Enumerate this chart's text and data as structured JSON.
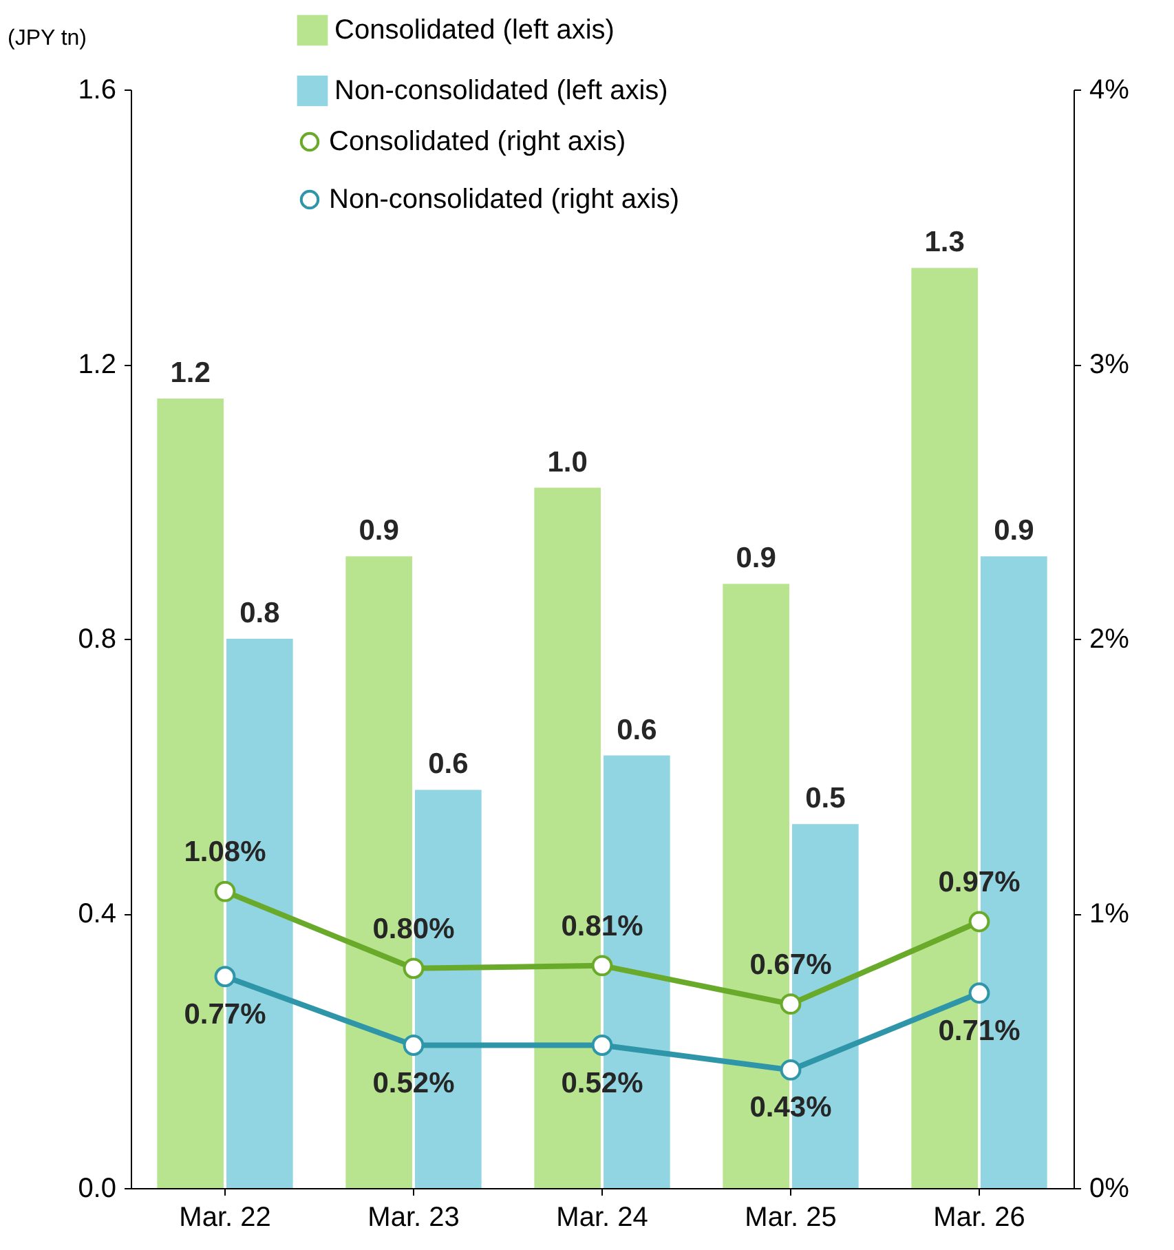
{
  "chart_data": {
    "type": "bar",
    "ylabel": "(JPY tn)",
    "categories": [
      "Mar. 22",
      "Mar. 23",
      "Mar. 24",
      "Mar. 25",
      "Mar. 26"
    ],
    "series": [
      {
        "name": "Consolidated (left axis)",
        "color": "#b9e48f",
        "values": [
          1.15,
          0.92,
          1.02,
          0.88,
          1.34
        ],
        "value_labels": [
          "1.2",
          "0.9",
          "1.0",
          "0.9",
          "1.3"
        ]
      },
      {
        "name": "Non-consolidated (left axis)",
        "color": "#92d5e2",
        "values": [
          0.8,
          0.58,
          0.63,
          0.53,
          0.92
        ],
        "value_labels": [
          "0.8",
          "0.6",
          "0.6",
          "0.5",
          "0.9"
        ]
      },
      {
        "name": "Consolidated (right axis)",
        "type": "line",
        "axis": "y2",
        "color": "#6aaa2a",
        "values": [
          1.08,
          0.8,
          0.81,
          0.67,
          0.97
        ],
        "value_labels": [
          "1.08%",
          "0.80%",
          "0.81%",
          "0.67%",
          "0.97%"
        ]
      },
      {
        "name": "Non-consolidated (right axis)",
        "type": "line",
        "axis": "y2",
        "color": "#2e96a8",
        "values": [
          0.77,
          0.52,
          0.52,
          0.43,
          0.71
        ],
        "value_labels": [
          "0.77%",
          "0.52%",
          "0.52%",
          "0.43%",
          "0.71%"
        ]
      }
    ],
    "ylim": [
      0,
      1.6
    ],
    "yticks": [
      {
        "value": 0,
        "label": "0.0"
      },
      {
        "value": 0.4,
        "label": "0.4"
      },
      {
        "value": 0.8,
        "label": "0.8"
      },
      {
        "value": 1.2,
        "label": "1.2"
      },
      {
        "value": 1.6,
        "label": "1.6"
      }
    ],
    "y2lim": [
      0,
      4
    ],
    "y2ticks": [
      {
        "value": 0,
        "label": "0%"
      },
      {
        "value": 1,
        "label": "1%"
      },
      {
        "value": 2,
        "label": "2%"
      },
      {
        "value": 3,
        "label": "3%"
      },
      {
        "value": 4,
        "label": "4%"
      }
    ],
    "legend": "top",
    "marker": "circle",
    "grid": false
  }
}
